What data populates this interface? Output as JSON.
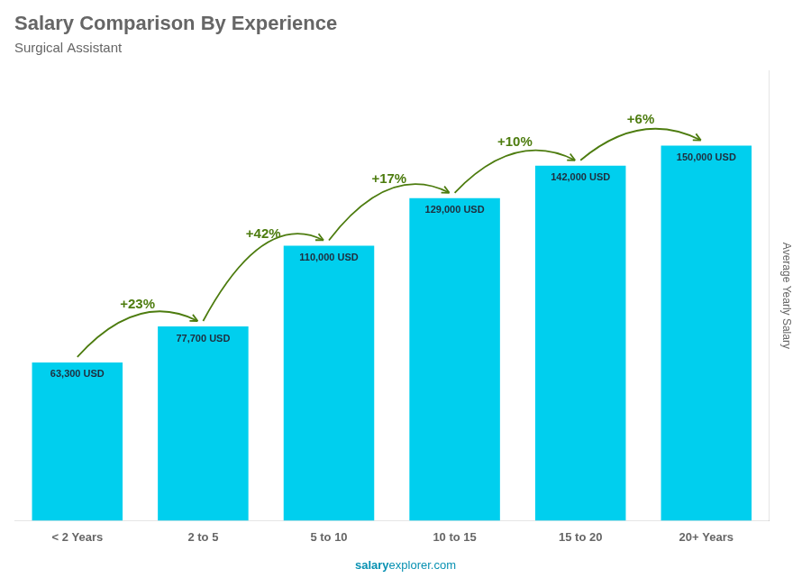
{
  "chart_data": {
    "type": "bar",
    "title": "Salary Comparison By Experience",
    "subtitle": "Surgical Assistant",
    "categories": [
      "< 2 Years",
      "2 to 5",
      "5 to 10",
      "10 to 15",
      "15 to 20",
      "20+ Years"
    ],
    "values": [
      63300,
      77700,
      110000,
      129000,
      142000,
      150000
    ],
    "value_labels": [
      "63,300 USD",
      "77,700 USD",
      "110,000 USD",
      "129,000 USD",
      "142,000 USD",
      "150,000 USD"
    ],
    "data_labels": true,
    "color": "#00CFEE",
    "annotations": [
      "+23%",
      "+42%",
      "+17%",
      "+10%",
      "+6%"
    ],
    "ylabel": "Average Yearly Salary",
    "footer": [
      "salary",
      "explorer.com"
    ],
    "ylim": [
      0,
      180000
    ],
    "grid": false,
    "tick_labels": "x"
  }
}
